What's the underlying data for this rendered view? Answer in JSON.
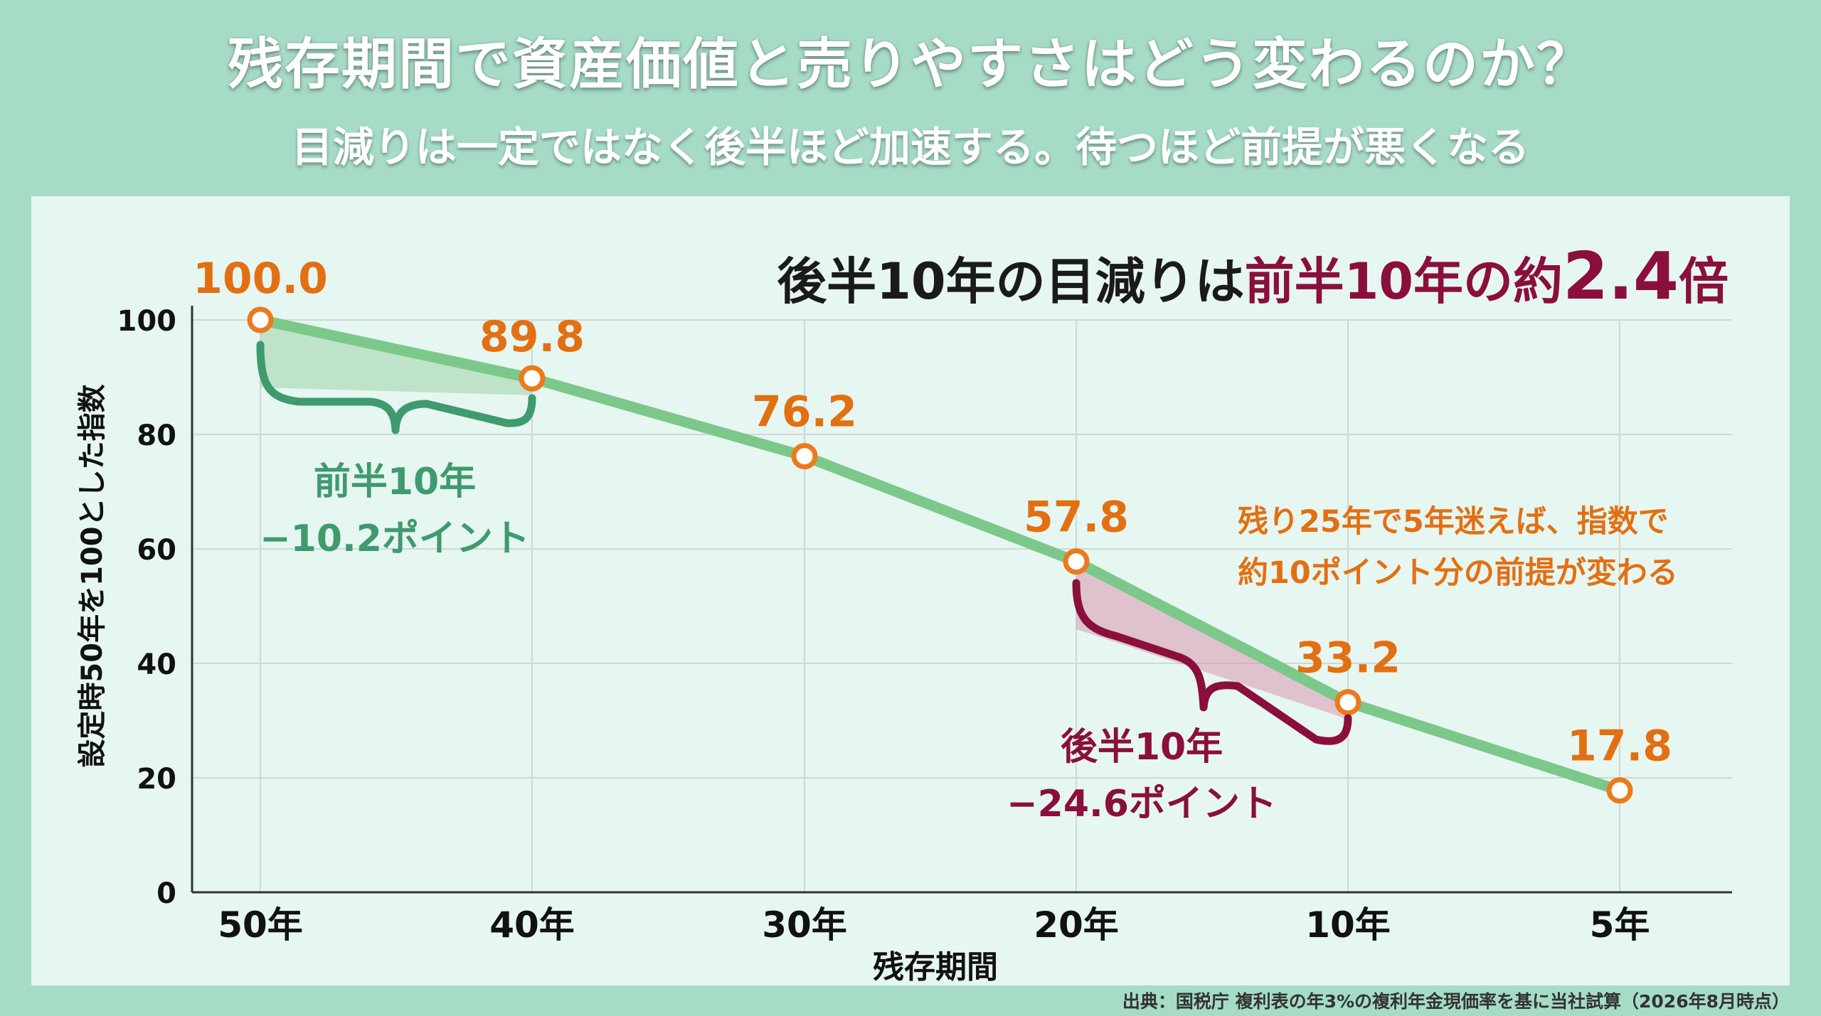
{
  "title": "残存期間で資産価値と売りやすさはどう変わるのか？",
  "subtitle": "目減りは一定ではなく後半ほど加速する。待つほど前提が悪くなる",
  "source": "出典：国税庁 複利表の年3%の複利年金現価率を基に当社試算（2026年8月時点）",
  "colors": {
    "line": "#7cc88a",
    "marker": "#ec7a1c",
    "label": "#e27012",
    "green_accent": "#3f9a6e",
    "red_accent": "#8a0f3c",
    "grid": "#cfd8d4"
  },
  "chart_data": {
    "type": "line",
    "title": "後半10年の目減りは前半10年の約2.4倍",
    "title_parts": {
      "lead": "後半10年の目減りは",
      "highlight": "前半10年の約",
      "number": "2.4",
      "tail": "倍"
    },
    "xlabel": "残存期間",
    "ylabel": "設定時50年を100とした指数",
    "categories": [
      "50年",
      "40年",
      "30年",
      "20年",
      "10年",
      "5年"
    ],
    "values": [
      100.0,
      89.8,
      76.2,
      57.8,
      33.2,
      17.8
    ],
    "data_labels": [
      "100.0",
      "89.8",
      "76.2",
      "57.8",
      "33.2",
      "17.8"
    ],
    "ylim": [
      0,
      100
    ],
    "yticks": [
      0,
      20,
      40,
      60,
      80,
      100
    ],
    "grid": true,
    "annotations": {
      "first_half": {
        "line1": "前半10年",
        "line2": "−10.2ポイント",
        "from": "50年",
        "to": "40年"
      },
      "second_half": {
        "line1": "後半10年",
        "line2": "−24.6ポイント",
        "from": "20年",
        "to": "10年"
      },
      "note": {
        "line1": "残り25年で5年迷えば、指数で",
        "line2": "約10ポイント分の前提が変わる"
      }
    }
  }
}
